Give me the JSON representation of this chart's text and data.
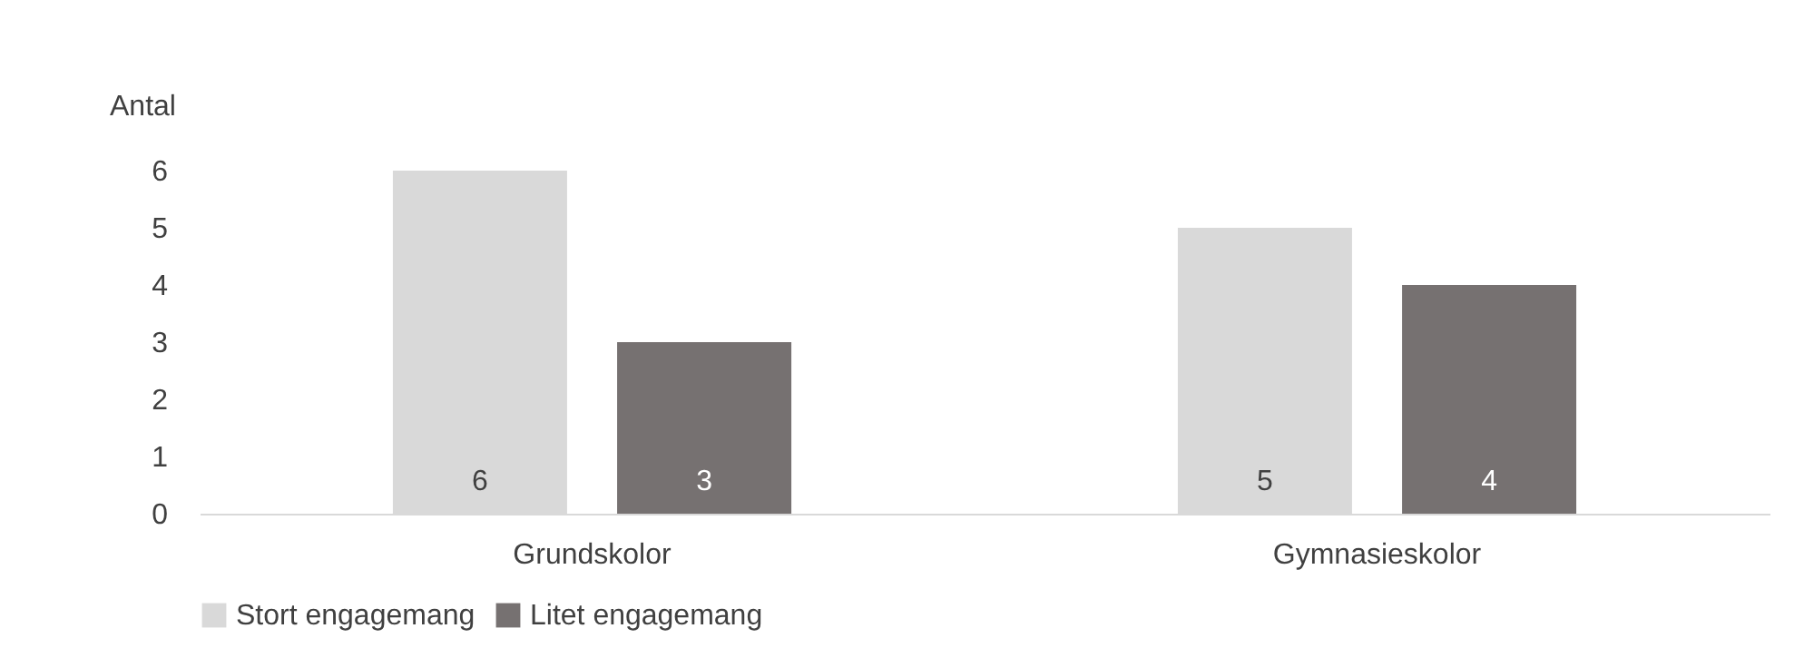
{
  "chart_data": {
    "type": "bar",
    "ylabel": "Antal",
    "categories": [
      "Grundskolor",
      "Gymnasieskolor"
    ],
    "series": [
      {
        "name": "Stort engagemang",
        "color": "#d9d9d9",
        "values": [
          6,
          5
        ]
      },
      {
        "name": "Litet engagemang",
        "color": "#767171",
        "values": [
          3,
          4
        ]
      }
    ],
    "ylim": [
      0,
      6
    ],
    "yticks": [
      0,
      1,
      2,
      3,
      4,
      5,
      6
    ],
    "grid": false,
    "legend": "bottom",
    "data_labels": true
  }
}
